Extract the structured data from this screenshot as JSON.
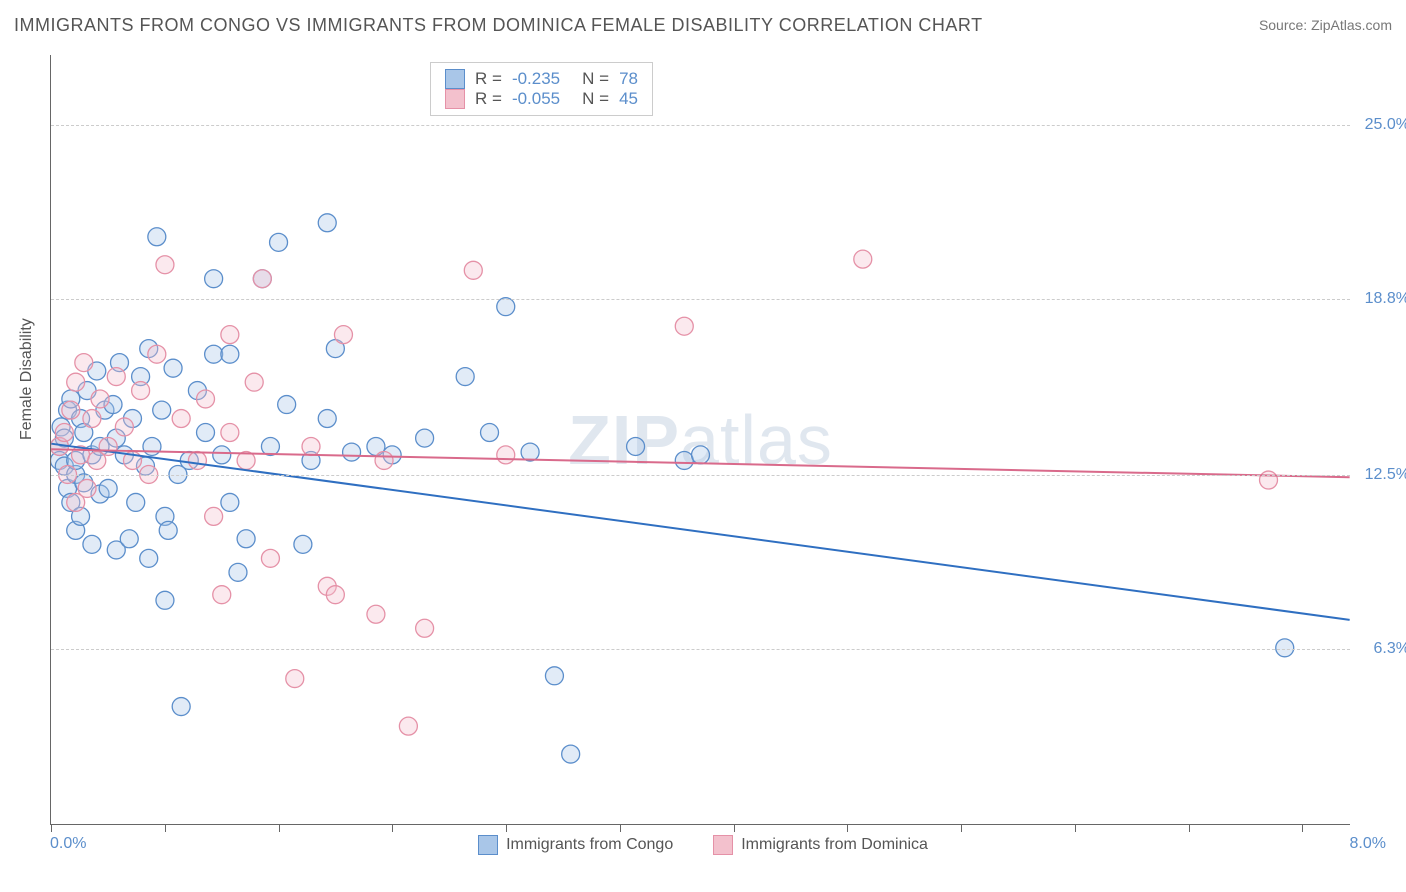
{
  "title": "IMMIGRANTS FROM CONGO VS IMMIGRANTS FROM DOMINICA FEMALE DISABILITY CORRELATION CHART",
  "source": "Source: ZipAtlas.com",
  "watermark": "ZIPatlas",
  "ylabel": "Female Disability",
  "chart": {
    "type": "scatter",
    "xlim": [
      0,
      8.0
    ],
    "ylim": [
      0,
      27.5
    ],
    "x_tick_values": [
      0,
      0.7,
      1.4,
      2.1,
      2.8,
      3.5,
      4.2,
      4.9,
      5.6,
      6.3,
      7.0,
      7.7
    ],
    "x_axis_labels": {
      "left": "0.0%",
      "right": "8.0%"
    },
    "y_gridlines": [
      6.3,
      12.5,
      18.8,
      25.0
    ],
    "y_tick_labels": [
      "6.3%",
      "12.5%",
      "18.8%",
      "25.0%"
    ],
    "background_color": "#ffffff",
    "grid_color": "#cccccc",
    "axis_color": "#666666",
    "label_color": "#555555",
    "tick_label_color": "#5b8ecb",
    "title_fontsize": 18,
    "label_fontsize": 16,
    "marker_radius": 9,
    "marker_fill_opacity": 0.35,
    "marker_stroke_width": 1.3,
    "line_width": 2
  },
  "series": [
    {
      "name": "Immigrants from Congo",
      "color_fill": "#a9c6e8",
      "color_stroke": "#5b8ecb",
      "line_color": "#2f6fc1",
      "R": "-0.235",
      "N": "78",
      "regression": {
        "x1": 0.0,
        "y1": 13.6,
        "x2": 8.0,
        "y2": 7.3
      },
      "points": [
        [
          0.05,
          13.5
        ],
        [
          0.05,
          13.0
        ],
        [
          0.06,
          14.2
        ],
        [
          0.08,
          12.8
        ],
        [
          0.08,
          13.8
        ],
        [
          0.1,
          12.0
        ],
        [
          0.1,
          14.8
        ],
        [
          0.12,
          11.5
        ],
        [
          0.12,
          15.2
        ],
        [
          0.15,
          12.5
        ],
        [
          0.15,
          13.0
        ],
        [
          0.15,
          10.5
        ],
        [
          0.18,
          14.5
        ],
        [
          0.18,
          11.0
        ],
        [
          0.2,
          14.0
        ],
        [
          0.2,
          12.2
        ],
        [
          0.22,
          15.5
        ],
        [
          0.25,
          13.2
        ],
        [
          0.25,
          10.0
        ],
        [
          0.28,
          16.2
        ],
        [
          0.3,
          13.5
        ],
        [
          0.3,
          11.8
        ],
        [
          0.33,
          14.8
        ],
        [
          0.35,
          12.0
        ],
        [
          0.38,
          15.0
        ],
        [
          0.4,
          13.8
        ],
        [
          0.4,
          9.8
        ],
        [
          0.42,
          16.5
        ],
        [
          0.45,
          13.2
        ],
        [
          0.48,
          10.2
        ],
        [
          0.5,
          14.5
        ],
        [
          0.52,
          11.5
        ],
        [
          0.55,
          16.0
        ],
        [
          0.58,
          12.8
        ],
        [
          0.6,
          9.5
        ],
        [
          0.6,
          17.0
        ],
        [
          0.62,
          13.5
        ],
        [
          0.65,
          21.0
        ],
        [
          0.68,
          14.8
        ],
        [
          0.7,
          8.0
        ],
        [
          0.7,
          11.0
        ],
        [
          0.72,
          10.5
        ],
        [
          0.75,
          16.3
        ],
        [
          0.78,
          12.5
        ],
        [
          0.8,
          4.2
        ],
        [
          0.85,
          13.0
        ],
        [
          0.9,
          15.5
        ],
        [
          0.95,
          14.0
        ],
        [
          1.0,
          19.5
        ],
        [
          1.0,
          16.8
        ],
        [
          1.05,
          13.2
        ],
        [
          1.1,
          11.5
        ],
        [
          1.1,
          16.8
        ],
        [
          1.15,
          9.0
        ],
        [
          1.2,
          10.2
        ],
        [
          1.3,
          19.5
        ],
        [
          1.35,
          13.5
        ],
        [
          1.4,
          20.8
        ],
        [
          1.45,
          15.0
        ],
        [
          1.55,
          10.0
        ],
        [
          1.6,
          13.0
        ],
        [
          1.7,
          14.5
        ],
        [
          1.7,
          21.5
        ],
        [
          1.75,
          17.0
        ],
        [
          1.85,
          13.3
        ],
        [
          2.0,
          13.5
        ],
        [
          2.1,
          13.2
        ],
        [
          2.3,
          13.8
        ],
        [
          2.55,
          16.0
        ],
        [
          2.7,
          14.0
        ],
        [
          2.8,
          18.5
        ],
        [
          2.95,
          13.3
        ],
        [
          3.1,
          5.3
        ],
        [
          3.2,
          2.5
        ],
        [
          3.6,
          13.5
        ],
        [
          3.9,
          13.0
        ],
        [
          4.0,
          13.2
        ],
        [
          7.6,
          6.3
        ]
      ]
    },
    {
      "name": "Immigrants from Dominica",
      "color_fill": "#f3c1cd",
      "color_stroke": "#e591a7",
      "line_color": "#d96a8b",
      "R": "-0.055",
      "N": "45",
      "regression": {
        "x1": 0.0,
        "y1": 13.4,
        "x2": 8.0,
        "y2": 12.4
      },
      "points": [
        [
          0.05,
          13.5
        ],
        [
          0.08,
          14.0
        ],
        [
          0.1,
          12.5
        ],
        [
          0.12,
          14.8
        ],
        [
          0.15,
          15.8
        ],
        [
          0.15,
          11.5
        ],
        [
          0.18,
          13.2
        ],
        [
          0.2,
          16.5
        ],
        [
          0.22,
          12.0
        ],
        [
          0.25,
          14.5
        ],
        [
          0.28,
          13.0
        ],
        [
          0.3,
          15.2
        ],
        [
          0.35,
          13.5
        ],
        [
          0.4,
          16.0
        ],
        [
          0.45,
          14.2
        ],
        [
          0.5,
          13.0
        ],
        [
          0.55,
          15.5
        ],
        [
          0.6,
          12.5
        ],
        [
          0.65,
          16.8
        ],
        [
          0.7,
          20.0
        ],
        [
          0.8,
          14.5
        ],
        [
          0.9,
          13.0
        ],
        [
          0.95,
          15.2
        ],
        [
          1.0,
          11.0
        ],
        [
          1.05,
          8.2
        ],
        [
          1.1,
          17.5
        ],
        [
          1.1,
          14.0
        ],
        [
          1.2,
          13.0
        ],
        [
          1.25,
          15.8
        ],
        [
          1.3,
          19.5
        ],
        [
          1.35,
          9.5
        ],
        [
          1.5,
          5.2
        ],
        [
          1.6,
          13.5
        ],
        [
          1.7,
          8.5
        ],
        [
          1.75,
          8.2
        ],
        [
          1.8,
          17.5
        ],
        [
          2.0,
          7.5
        ],
        [
          2.05,
          13.0
        ],
        [
          2.2,
          3.5
        ],
        [
          2.3,
          7.0
        ],
        [
          2.6,
          19.8
        ],
        [
          2.8,
          13.2
        ],
        [
          3.9,
          17.8
        ],
        [
          5.0,
          20.2
        ],
        [
          7.5,
          12.3
        ]
      ]
    }
  ],
  "bottom_legend": [
    {
      "label": "Immigrants from Congo",
      "fill": "#a9c6e8",
      "stroke": "#5b8ecb"
    },
    {
      "label": "Immigrants from Dominica",
      "fill": "#f3c1cd",
      "stroke": "#e591a7"
    }
  ]
}
